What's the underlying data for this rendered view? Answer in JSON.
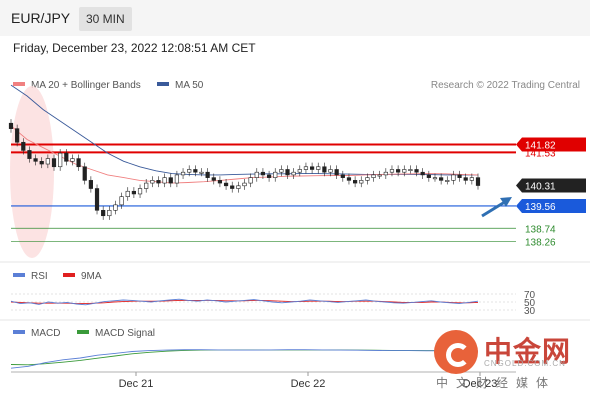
{
  "header": {
    "symbol": "EUR/JPY",
    "timeframe": "30 MIN"
  },
  "datetime": "Friday, December 23, 2022 12:08:51 AM CET",
  "legend_main": [
    {
      "label": "MA 20 + Bollinger Bands",
      "color": "#f08080"
    },
    {
      "label": "MA 50",
      "color": "#3a5a9a"
    }
  ],
  "credit": "Research © 2022 Trading Central",
  "legend_rsi": [
    {
      "label": "RSI",
      "color": "#5b7fd6"
    },
    {
      "label": "9MA",
      "color": "#e02020"
    }
  ],
  "legend_macd": [
    {
      "label": "MACD",
      "color": "#5b7fd6"
    },
    {
      "label": "MACD Signal",
      "color": "#3a9a3a"
    }
  ],
  "watermark": {
    "title": "中金网",
    "url": "CNGOLD.COM.CN",
    "subtitle": "中文财经媒体"
  },
  "chart_data": {
    "type": "candlestick",
    "x_ticks": [
      "Dec 21",
      "Dec 22",
      "Dec 23"
    ],
    "price_levels": [
      {
        "label": "141.82",
        "value": 141.82,
        "color": "#e00000",
        "style": "resistance"
      },
      {
        "label": "141.53",
        "value": 141.53,
        "color": "#e00000",
        "style": "resistance"
      },
      {
        "label": "140.31",
        "value": 140.31,
        "color": "#333333",
        "style": "current"
      },
      {
        "label": "139.56",
        "value": 139.56,
        "color": "#1a5adb",
        "style": "pivot"
      },
      {
        "label": "138.74",
        "value": 138.74,
        "color": "#2e8b2e",
        "style": "support"
      },
      {
        "label": "138.26",
        "value": 138.26,
        "color": "#2e8b2e",
        "style": "support"
      }
    ],
    "close": [
      142.4,
      141.9,
      141.6,
      141.3,
      141.2,
      141.1,
      141.3,
      141.0,
      141.5,
      141.2,
      141.3,
      141.0,
      140.5,
      140.2,
      139.4,
      139.2,
      139.4,
      139.6,
      139.9,
      140.1,
      140.0,
      140.2,
      140.4,
      140.5,
      140.4,
      140.6,
      140.4,
      140.7,
      140.8,
      140.9,
      140.8,
      140.8,
      140.6,
      140.5,
      140.4,
      140.3,
      140.2,
      140.3,
      140.4,
      140.6,
      140.8,
      140.7,
      140.6,
      140.8,
      140.9,
      140.7,
      140.8,
      140.9,
      141.0,
      140.9,
      141.0,
      140.8,
      140.9,
      140.7,
      140.6,
      140.5,
      140.4,
      140.5,
      140.6,
      140.7,
      140.7,
      140.8,
      140.9,
      140.8,
      140.9,
      140.9,
      140.8,
      140.7,
      140.6,
      140.6,
      140.5,
      140.5,
      140.7,
      140.6,
      140.5,
      140.6,
      140.31
    ],
    "ma20": [
      142.5,
      142.0,
      141.7,
      141.4,
      141.1,
      140.9,
      140.7,
      140.6,
      140.5,
      140.45,
      140.4,
      140.42,
      140.45,
      140.5,
      140.55,
      140.6,
      140.62,
      140.65,
      140.66,
      140.67,
      140.68,
      140.68,
      140.7,
      140.72,
      140.73,
      140.74,
      140.75,
      140.74,
      140.72,
      140.7
    ],
    "ma50": [
      144.0,
      143.6,
      143.1,
      142.7,
      142.3,
      141.9,
      141.5,
      141.2,
      141.0,
      140.85,
      140.75,
      140.72,
      140.7,
      140.7,
      140.72,
      140.73,
      140.74,
      140.74,
      140.75,
      140.75,
      140.74,
      140.73,
      140.72,
      140.72,
      140.72,
      140.72,
      140.71,
      140.7,
      140.7,
      140.7
    ],
    "rsi_levels": [
      70,
      50,
      30
    ],
    "rsi": [
      52,
      46,
      48,
      44,
      50,
      47,
      49,
      45,
      43,
      47,
      51,
      53,
      55,
      54,
      52,
      50,
      53,
      55,
      57,
      54,
      52,
      55,
      53,
      50,
      52,
      54,
      56,
      53,
      50,
      48,
      50,
      52,
      55,
      53,
      51,
      49,
      51,
      53,
      55,
      52,
      50,
      48,
      47,
      49,
      51,
      53,
      50,
      48,
      46,
      49,
      52
    ],
    "rsi_ma": [
      50,
      49,
      48,
      47,
      47,
      47,
      47,
      46,
      46,
      47,
      48,
      50,
      51,
      52,
      52,
      52,
      52,
      53,
      54,
      54,
      54,
      54,
      54,
      53,
      53,
      53,
      54,
      54,
      53,
      52,
      51,
      51,
      52,
      52,
      52,
      51,
      51,
      52,
      52,
      52,
      51,
      50,
      49,
      49,
      49,
      50,
      50,
      49,
      48,
      48,
      49
    ],
    "macd": [
      -0.9,
      -0.8,
      -0.6,
      -0.45,
      -0.35,
      -0.2,
      -0.1,
      0.0,
      0.05,
      0.08,
      0.1,
      0.1,
      0.09,
      0.08,
      0.08,
      0.09,
      0.1,
      0.1,
      0.09,
      0.08,
      0.07,
      0.06,
      0.05,
      0.05,
      0.04,
      0.04,
      0.03,
      0.03
    ],
    "macd_signal": [
      -0.7,
      -0.72,
      -0.66,
      -0.58,
      -0.48,
      -0.36,
      -0.24,
      -0.12,
      -0.04,
      0.02,
      0.06,
      0.08,
      0.09,
      0.09,
      0.09,
      0.09,
      0.09,
      0.09,
      0.09,
      0.09,
      0.08,
      0.07,
      0.06,
      0.06,
      0.05,
      0.05,
      0.04,
      0.04
    ]
  }
}
